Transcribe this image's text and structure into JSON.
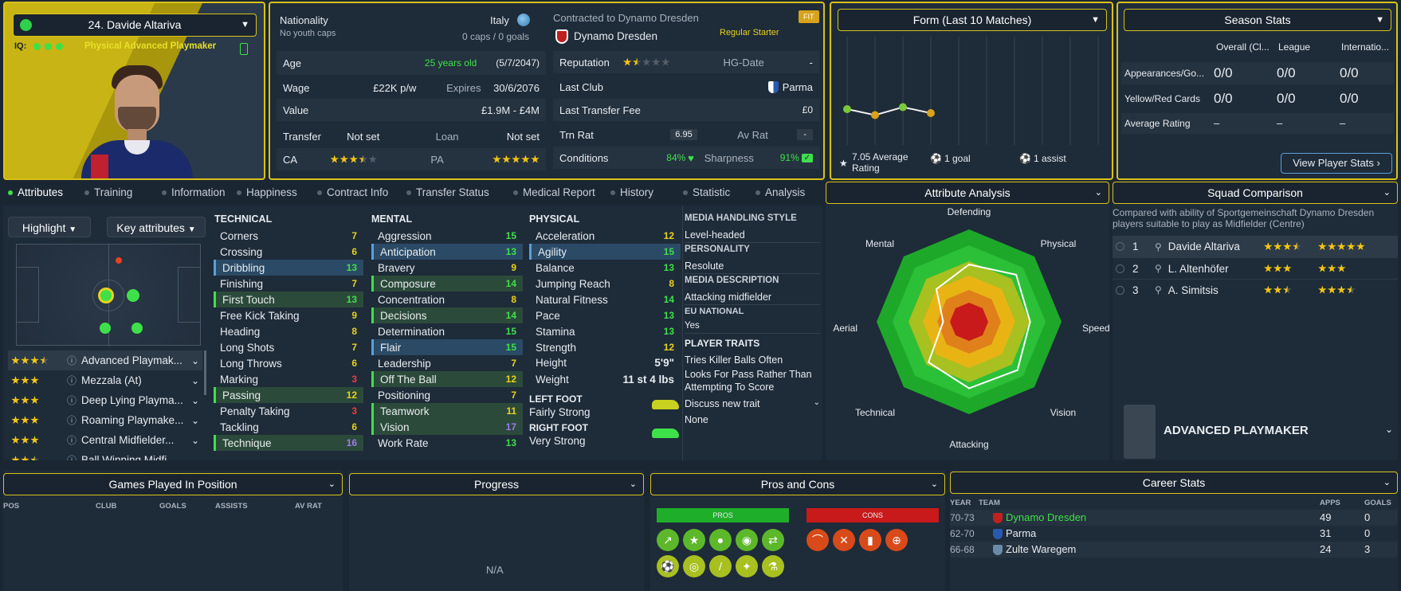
{
  "player": {
    "name": "24. Davide Altariva",
    "iq_label": "IQ:",
    "role": "Physical Advanced Playmaker"
  },
  "nat": {
    "label": "Nationality",
    "sub": "No youth caps",
    "country": "Italy",
    "caps": "0 caps / 0 goals"
  },
  "contract": {
    "label": "Contracted to Dynamo Dresden",
    "club": "Dynamo Dresden",
    "fit": "FIT",
    "status": "Regular Starter"
  },
  "info": {
    "age_l": "Age",
    "age_v": "25 years old",
    "age_d": "(5/7/2047)",
    "wage_l": "Wage",
    "wage_v": "£22K p/w",
    "exp_l": "Expires",
    "exp_v": "30/6/2076",
    "val_l": "Value",
    "val_v": "£1.9M - £4M",
    "trans_l": "Transfer",
    "trans_v": "Not set",
    "loan_l": "Loan",
    "loan_v": "Not set",
    "ca": "CA",
    "pa": "PA"
  },
  "club": {
    "rep": "Reputation",
    "hg": "HG-Date",
    "hg_v": "-",
    "last": "Last Club",
    "last_v": "Parma",
    "ltf": "Last Transfer Fee",
    "ltf_v": "£0",
    "trn": "Trn Rat",
    "trn_v": "6.95",
    "av": "Av Rat",
    "av_v": "-",
    "cond": "Conditions",
    "cond_v": "84%",
    "sharp": "Sharpness",
    "sharp_v": "91%"
  },
  "form": {
    "title": "Form (Last 10 Matches)",
    "avg": "7.05 Average Rating",
    "goals": "1 goal",
    "assists": "1 assist",
    "values": [
      7.3,
      7.0,
      7.4,
      7.1
    ]
  },
  "season": {
    "title": "Season Stats",
    "cols": [
      "Overall (Cl...",
      "League",
      "Internatio..."
    ],
    "rows": [
      {
        "l": "Appearances/Go...",
        "v": [
          "0/0",
          "0/0",
          "0/0"
        ]
      },
      {
        "l": "Yellow/Red Cards",
        "v": [
          "0/0",
          "0/0",
          "0/0"
        ]
      },
      {
        "l": "Average Rating",
        "v": [
          "–",
          "–",
          "–"
        ]
      }
    ],
    "btn": "View Player Stats"
  },
  "tabs": [
    "Attributes",
    "Training",
    "Information",
    "Happiness",
    "Contract Info",
    "Transfer Status",
    "Medical Report",
    "History",
    "Statistic",
    "Analysis"
  ],
  "left": {
    "highlight": "Highlight",
    "key": "Key attributes",
    "roles": [
      "Advanced Playmak...",
      "Mezzala (At)",
      "Deep Lying Playma...",
      "Roaming Playmake...",
      "Central Midfielder...",
      "Ball Winning Midfi..."
    ]
  },
  "technical": {
    "title": "TECHNICAL",
    "items": [
      [
        "Corners",
        "7"
      ],
      [
        "Crossing",
        "6"
      ],
      [
        "Dribbling",
        "13"
      ],
      [
        "Finishing",
        "7"
      ],
      [
        "First Touch",
        "13"
      ],
      [
        "Free Kick Taking",
        "9"
      ],
      [
        "Heading",
        "8"
      ],
      [
        "Long Shots",
        "7"
      ],
      [
        "Long Throws",
        "6"
      ],
      [
        "Marking",
        "3"
      ],
      [
        "Passing",
        "12"
      ],
      [
        "Penalty Taking",
        "3"
      ],
      [
        "Tackling",
        "6"
      ],
      [
        "Technique",
        "16"
      ]
    ]
  },
  "mental": {
    "title": "MENTAL",
    "items": [
      [
        "Aggression",
        "15"
      ],
      [
        "Anticipation",
        "13"
      ],
      [
        "Bravery",
        "9"
      ],
      [
        "Composure",
        "14"
      ],
      [
        "Concentration",
        "8"
      ],
      [
        "Decisions",
        "14"
      ],
      [
        "Determination",
        "15"
      ],
      [
        "Flair",
        "15"
      ],
      [
        "Leadership",
        "7"
      ],
      [
        "Off The Ball",
        "12"
      ],
      [
        "Positioning",
        "7"
      ],
      [
        "Teamwork",
        "11"
      ],
      [
        "Vision",
        "17"
      ],
      [
        "Work Rate",
        "13"
      ]
    ]
  },
  "physical": {
    "title": "PHYSICAL",
    "items": [
      [
        "Acceleration",
        "12"
      ],
      [
        "Agility",
        "15"
      ],
      [
        "Balance",
        "13"
      ],
      [
        "Jumping Reach",
        "8"
      ],
      [
        "Natural Fitness",
        "14"
      ],
      [
        "Pace",
        "13"
      ],
      [
        "Stamina",
        "13"
      ],
      [
        "Strength",
        "12"
      ]
    ],
    "height_l": "Height",
    "height_v": "5'9\"",
    "weight_l": "Weight",
    "weight_v": "11 st 4 lbs",
    "lf_l": "LEFT FOOT",
    "lf_v": "Fairly Strong",
    "rf_l": "RIGHT FOOT",
    "rf_v": "Very Strong"
  },
  "media": {
    "mhs_t": "MEDIA HANDLING STYLE",
    "mhs": "Level-headed",
    "pers_t": "PERSONALITY",
    "pers": "Resolute",
    "md_t": "MEDIA DESCRIPTION",
    "md": "Attacking midfielder",
    "eu_t": "EU NATIONAL",
    "eu": "Yes",
    "traits_t": "PLAYER TRAITS",
    "t1": "Tries Killer Balls Often",
    "t2": "Looks For Pass Rather Than Attempting To Score",
    "discuss": "Discuss new trait",
    "none": "None"
  },
  "analysis": {
    "title": "Attribute Analysis",
    "labels": [
      "Defending",
      "Physical",
      "Speed",
      "Vision",
      "Attacking",
      "Technical",
      "Aerial",
      "Mental"
    ]
  },
  "squad": {
    "title": "Squad Comparison",
    "desc": "Compared with ability of Sportgemeinschaft Dynamo Dresden players suitable to play as Midfielder (Centre)",
    "rows": [
      [
        "1",
        "Davide Altariva"
      ],
      [
        "2",
        "L. Altenhöfer"
      ],
      [
        "3",
        "A. Simitsis"
      ]
    ],
    "role": "ADVANCED PLAYMAKER"
  },
  "games": {
    "title": "Games Played In Position",
    "cols": [
      "POS",
      "CLUB",
      "GOALS",
      "ASSISTS",
      "AV RAT"
    ]
  },
  "progress": {
    "title": "Progress",
    "na": "N/A"
  },
  "proscons": {
    "title": "Pros and Cons",
    "pros": "PROS",
    "cons": "CONS"
  },
  "career": {
    "title": "Career Stats",
    "cols": [
      "YEAR",
      "TEAM",
      "APPS",
      "GOALS"
    ],
    "rows": [
      [
        "70-73",
        "Dynamo Dresden",
        "49",
        "0"
      ],
      [
        "62-70",
        "Parma",
        "31",
        "0"
      ],
      [
        "66-68",
        "Zulte Waregem",
        "24",
        "3"
      ]
    ]
  },
  "colors": {
    "accent": "#d8c21a",
    "green": "#3ee04a",
    "panel": "#1e2b39"
  }
}
